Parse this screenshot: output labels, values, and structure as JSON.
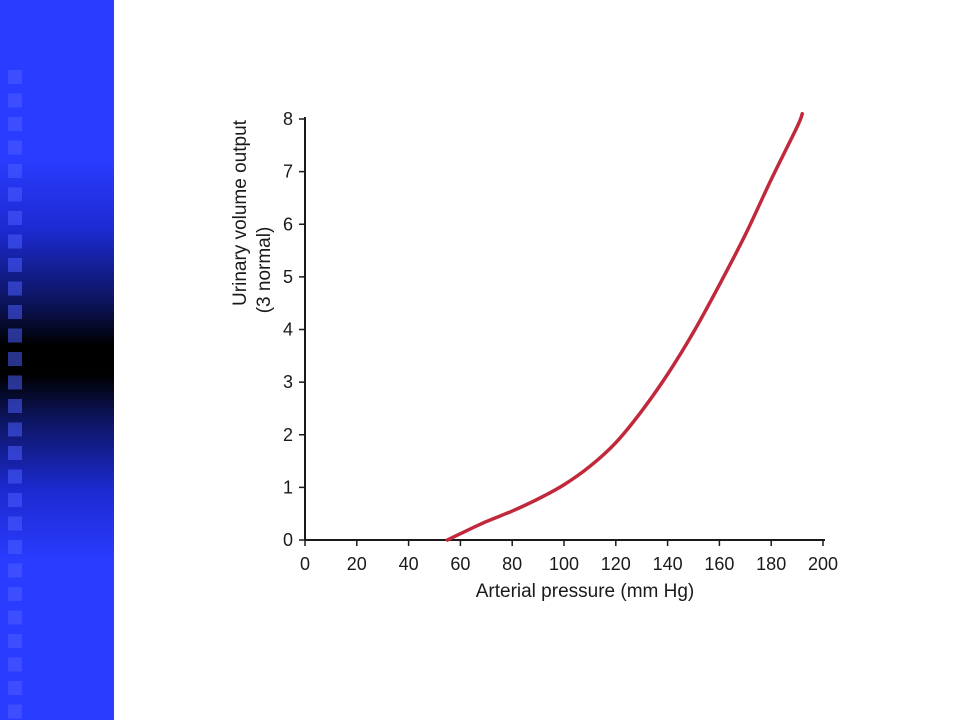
{
  "slide": {
    "accent_color": "#2a3cff",
    "band_squares_color": "#4a5cff"
  },
  "chart_data": {
    "type": "line",
    "title": "",
    "xlabel": "Arterial pressure (mm Hg)",
    "ylabel_line1": "Urinary volume output",
    "ylabel_line2": "(3 normal)",
    "xlim": [
      0,
      200
    ],
    "ylim": [
      0,
      8
    ],
    "xticks": [
      "0",
      "20",
      "40",
      "60",
      "80",
      "100",
      "120",
      "140",
      "160",
      "180",
      "200"
    ],
    "yticks": [
      "0",
      "1",
      "2",
      "3",
      "4",
      "5",
      "6",
      "7",
      "8"
    ],
    "grid": false,
    "line_color": "#c0283c",
    "series": [
      {
        "name": "",
        "x": [
          55,
          60,
          70,
          80,
          90,
          100,
          110,
          120,
          130,
          140,
          150,
          160,
          170,
          180,
          190,
          192
        ],
        "y": [
          0,
          0.12,
          0.35,
          0.55,
          0.78,
          1.05,
          1.4,
          1.85,
          2.45,
          3.15,
          3.95,
          4.85,
          5.8,
          6.85,
          7.85,
          8.1
        ]
      }
    ]
  }
}
